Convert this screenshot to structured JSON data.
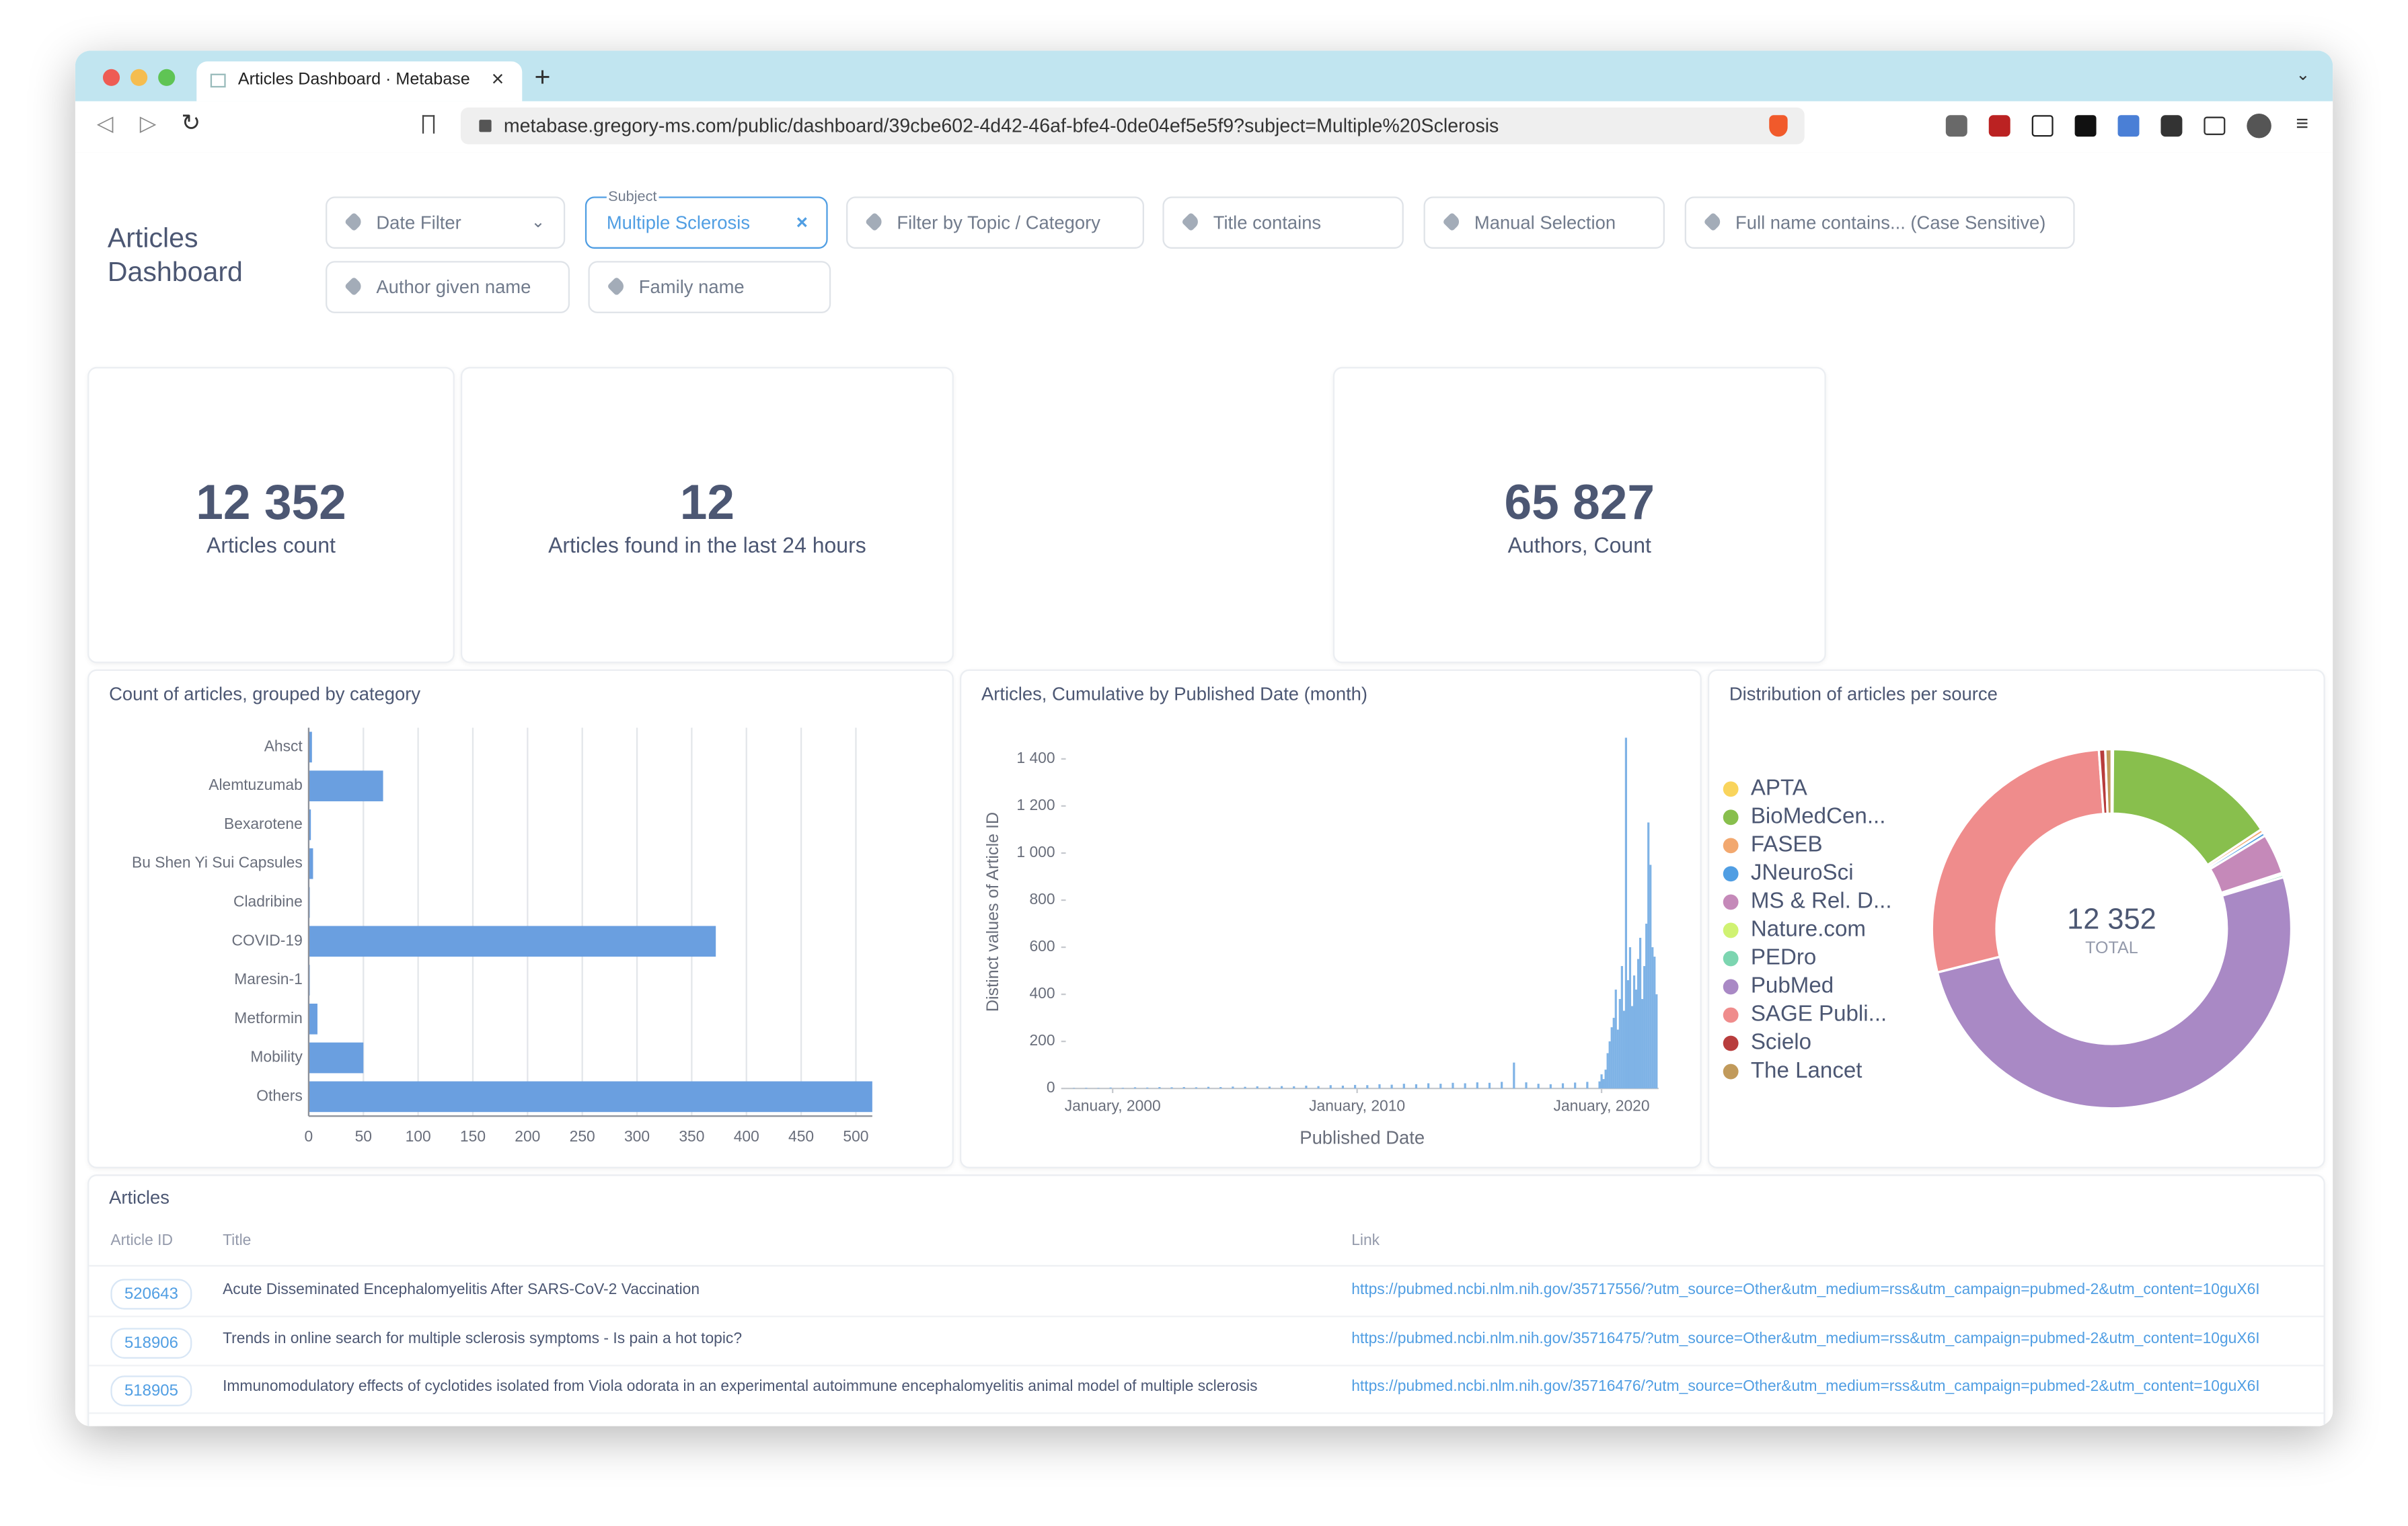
{
  "browser": {
    "tab_title": "Articles Dashboard · Metabase",
    "url": "metabase.gregory-ms.com/public/dashboard/39cbe602-4d42-46af-bfe4-0de04ef5e5f9?subject=Multiple%20Sclerosis"
  },
  "dashboard": {
    "title": "Articles Dashboard",
    "filters": [
      {
        "label": "Date Filter"
      },
      {
        "name": "Subject",
        "label": "Multiple Sclerosis"
      },
      {
        "label": "Filter by Topic / Category"
      },
      {
        "label": "Title contains"
      },
      {
        "label": "Manual Selection"
      },
      {
        "label": "Full name contains... (Case Sensitive)"
      },
      {
        "label": "Author given name"
      },
      {
        "label": "Family name"
      }
    ]
  },
  "scalars": [
    {
      "value": "12 352",
      "label": "Articles count"
    },
    {
      "value": "12",
      "label": "Articles found in the last 24 hours"
    },
    {
      "value": "65 827",
      "label": "Authors, Count"
    }
  ],
  "chart_data": [
    {
      "type": "bar",
      "title": "Count of articles, grouped by category",
      "categories": [
        "Ahsct",
        "Alemtuzumab",
        "Bexarotene",
        "Bu Shen Yi Sui Capsules",
        "Cladribine",
        "COVID-19",
        "Maresin-1",
        "Metformin",
        "Mobility",
        "Others"
      ],
      "values": [
        3,
        68,
        2,
        4,
        1,
        372,
        1,
        8,
        50,
        515
      ],
      "color": "#6a9fe0",
      "xlim": [
        0,
        515
      ],
      "xticks": [
        0,
        50,
        100,
        150,
        200,
        250,
        300,
        350,
        400,
        450,
        500
      ],
      "grid": true
    },
    {
      "type": "column",
      "title": "Articles, Cumulative by Published Date (month)",
      "xlabel": "Published Date",
      "ylabel": "Distinct values of Article ID",
      "x": [
        "1998-06",
        "1998-12",
        "1999-06",
        "1999-12",
        "2000-06",
        "2000-12",
        "2001-06",
        "2001-12",
        "2002-06",
        "2002-12",
        "2003-06",
        "2003-12",
        "2004-06",
        "2004-12",
        "2005-06",
        "2005-12",
        "2006-06",
        "2006-12",
        "2007-06",
        "2007-12",
        "2008-06",
        "2008-12",
        "2009-06",
        "2009-12",
        "2010-06",
        "2010-12",
        "2011-06",
        "2011-12",
        "2012-06",
        "2012-12",
        "2013-06",
        "2013-12",
        "2014-06",
        "2014-12",
        "2015-06",
        "2015-12",
        "2016-06",
        "2016-12",
        "2017-06",
        "2017-12",
        "2018-06",
        "2018-12",
        "2019-06",
        "2019-12",
        "2020-01",
        "2020-02",
        "2020-03",
        "2020-04",
        "2020-05",
        "2020-06",
        "2020-07",
        "2020-08",
        "2020-09",
        "2020-10",
        "2020-11",
        "2020-12",
        "2021-01",
        "2021-02",
        "2021-03",
        "2021-04",
        "2021-05",
        "2021-06",
        "2021-07",
        "2021-08",
        "2021-09",
        "2021-10",
        "2021-11",
        "2021-12",
        "2022-01",
        "2022-02",
        "2022-03",
        "2022-04"
      ],
      "values": [
        2,
        3,
        2,
        4,
        3,
        5,
        4,
        6,
        5,
        6,
        5,
        7,
        6,
        8,
        7,
        9,
        8,
        10,
        9,
        12,
        10,
        14,
        12,
        15,
        14,
        18,
        16,
        20,
        18,
        22,
        20,
        24,
        22,
        26,
        24,
        28,
        110,
        26,
        20,
        18,
        22,
        25,
        28,
        30,
        60,
        40,
        80,
        150,
        200,
        260,
        300,
        420,
        250,
        380,
        520,
        330,
        1490,
        460,
        600,
        350,
        480,
        420,
        550,
        640,
        380,
        520,
        700,
        1130,
        950,
        600,
        560,
        400
      ],
      "color": "#7fb3e6",
      "xlim": [
        "1998-02",
        "2022-05"
      ],
      "xticks": [
        {
          "value": "2000-01",
          "label": "January, 2000"
        },
        {
          "value": "2010-01",
          "label": "January, 2010"
        },
        {
          "value": "2020-01",
          "label": "January, 2020"
        }
      ],
      "ylim": [
        0,
        1500
      ],
      "yticks": [
        0,
        200,
        400,
        600,
        800,
        {
          "value": 1000,
          "label": "1 000"
        },
        {
          "value": 1200,
          "label": "1 200"
        },
        {
          "value": 1400,
          "label": "1 400"
        }
      ]
    },
    {
      "type": "pie",
      "title": "Distribution of articles per source",
      "categories": [
        "APTA",
        "BioMedCen...",
        "FASEB",
        "JNeuroSci",
        "MS & Rel. D...",
        "Nature.com",
        "PEDro",
        "PubMed",
        "SAGE Publi...",
        "Scielo",
        "The Lancet"
      ],
      "values": [
        15,
        1920,
        40,
        40,
        450,
        20,
        30,
        6267,
        3430,
        70,
        70
      ],
      "colors": [
        "#f9d45c",
        "#88bf4d",
        "#f2a86f",
        "#509ee3",
        "#c589b9",
        "#d0f272",
        "#7cd5b0",
        "#a989c5",
        "#ef8c8c",
        "#b83d3d",
        "#c19a5b"
      ],
      "total_label": "12 352",
      "total_caption": "TOTAL"
    }
  ],
  "table": {
    "title": "Articles",
    "columns": [
      "Article ID",
      "Title",
      "Link"
    ],
    "rows": [
      [
        "520643",
        "Acute Disseminated Encephalomyelitis After SARS-CoV-2 Vaccination",
        "https://pubmed.ncbi.nlm.nih.gov/35717556/?utm_source=Other&utm_medium=rss&utm_campaign=pubmed-2&utm_content=10guX6I"
      ],
      [
        "518906",
        "Trends in online search for multiple sclerosis symptoms - Is pain a hot topic?",
        "https://pubmed.ncbi.nlm.nih.gov/35716475/?utm_source=Other&utm_medium=rss&utm_campaign=pubmed-2&utm_content=10guX6I"
      ],
      [
        "518905",
        "Immunomodulatory effects of cyclotides isolated from Viola odorata in an experimental autoimmune encephalomyelitis animal model of multiple sclerosis",
        "https://pubmed.ncbi.nlm.nih.gov/35716476/?utm_source=Other&utm_medium=rss&utm_campaign=pubmed-2&utm_content=10guX6I"
      ]
    ]
  }
}
